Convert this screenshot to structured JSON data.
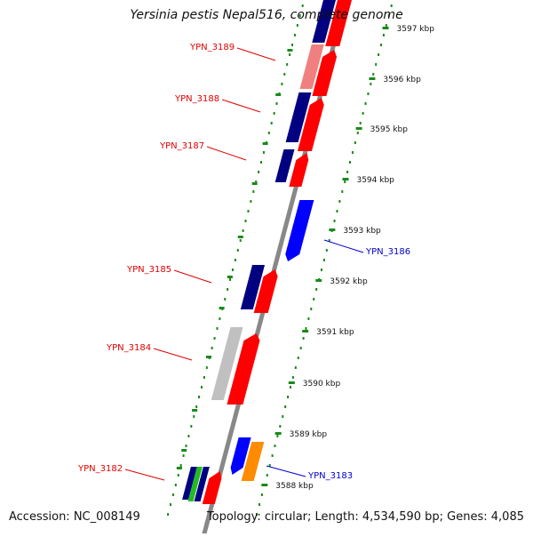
{
  "title": "Yersinia pestis Nepal516, complete genome",
  "footer": {
    "accession": "Accession: NC_008149",
    "topology": "Topology: circular; Length: 4,534,590 bp; Genes: 4,085"
  },
  "colors": {
    "gene_label_upper": "#e00000",
    "gene_label_lower": "#0000cc",
    "backbone": "#888888",
    "ruler": "#1a8a1a",
    "red": "#ff0000",
    "pink": "#f08080",
    "navy": "#000080",
    "blue": "#0000ff",
    "orange": "#ff8c00",
    "grey": "#c0c0c0",
    "green": "#22bb22"
  },
  "ruler_ticks": [
    "3597 kbp",
    "3596 kbp",
    "3595 kbp",
    "3594 kbp",
    "3593 kbp",
    "3592 kbp",
    "3591 kbp",
    "3590 kbp",
    "3589 kbp",
    "3588 kbp"
  ],
  "gene_labels": [
    {
      "name": "YPN_3189",
      "strand": "upper"
    },
    {
      "name": "YPN_3188",
      "strand": "upper"
    },
    {
      "name": "YPN_3187",
      "strand": "upper"
    },
    {
      "name": "YPN_3186",
      "strand": "lower"
    },
    {
      "name": "YPN_3185",
      "strand": "upper"
    },
    {
      "name": "YPN_3184",
      "strand": "upper"
    },
    {
      "name": "YPN_3183",
      "strand": "lower"
    },
    {
      "name": "YPN_3182",
      "strand": "upper"
    }
  ]
}
